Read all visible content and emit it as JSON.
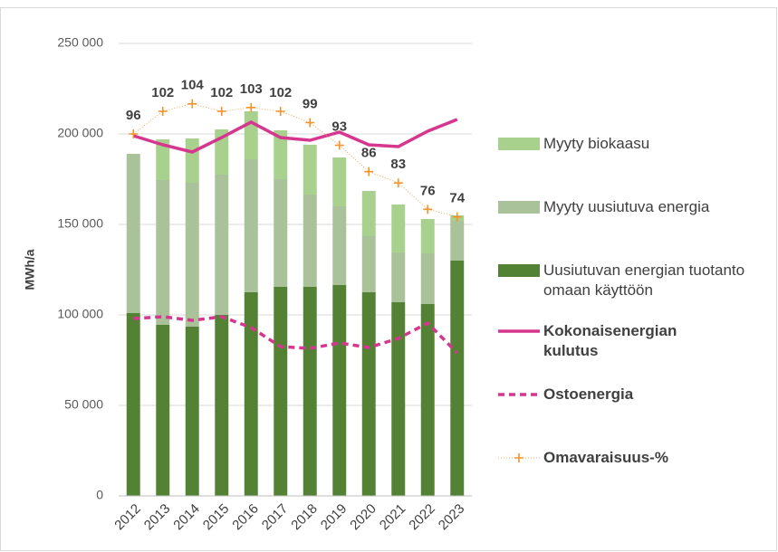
{
  "chart_data": {
    "type": "combo",
    "y_label": "MWh/a",
    "categories": [
      "2012",
      "2013",
      "2014",
      "2015",
      "2016",
      "2017",
      "2018",
      "2019",
      "2020",
      "2021",
      "2022",
      "2023"
    ],
    "ylim": [
      0,
      250000
    ],
    "yticks": [
      {
        "value": 0,
        "label": "0"
      },
      {
        "value": 50000,
        "label": "50 000"
      },
      {
        "value": 100000,
        "label": "100 000"
      },
      {
        "value": 150000,
        "label": "150 000"
      },
      {
        "value": 200000,
        "label": "200 000"
      },
      {
        "value": 250000,
        "label": "250 000"
      }
    ],
    "y2lim": [
      0,
      120
    ],
    "grid": true,
    "series": [
      {
        "name": "Uusiutuvan energian tuotanto omaan käyttöön",
        "type": "bar",
        "color": "#548235",
        "values": [
          101000,
          94500,
          93500,
          100000,
          112500,
          115500,
          115500,
          116500,
          112500,
          107000,
          106000,
          130000
        ]
      },
      {
        "name": "Myyty uusiutuva energia",
        "type": "bar",
        "color": "#a9c29a",
        "values": [
          88000,
          80000,
          79500,
          77500,
          73500,
          59500,
          51000,
          43500,
          31000,
          27500,
          28000,
          22000
        ]
      },
      {
        "name": "Myyty biokaasu",
        "type": "bar",
        "color": "#a9d18e",
        "values": [
          0,
          22500,
          24500,
          25000,
          26500,
          27000,
          27500,
          27000,
          25000,
          26500,
          19000,
          3000
        ]
      },
      {
        "name": "Kokonaisenergian kulutus",
        "type": "line",
        "color": "#d6378e",
        "values": [
          199000,
          194000,
          190000,
          198000,
          206500,
          198000,
          196500,
          201000,
          194000,
          193000,
          201500,
          208000
        ]
      },
      {
        "name": "Ostoenergia",
        "type": "line",
        "dash": true,
        "color": "#d6378e",
        "values": [
          98000,
          99000,
          97000,
          99000,
          93000,
          82500,
          81500,
          84500,
          82000,
          87000,
          95500,
          79000
        ]
      },
      {
        "name": "Omavaraisuus-%",
        "type": "line",
        "marker": "+",
        "axis": "y2",
        "data_labels": true,
        "color": "#f4922b",
        "values": [
          96,
          102,
          104,
          102,
          103,
          102,
          99,
          93,
          86,
          83,
          76,
          74
        ]
      }
    ]
  }
}
